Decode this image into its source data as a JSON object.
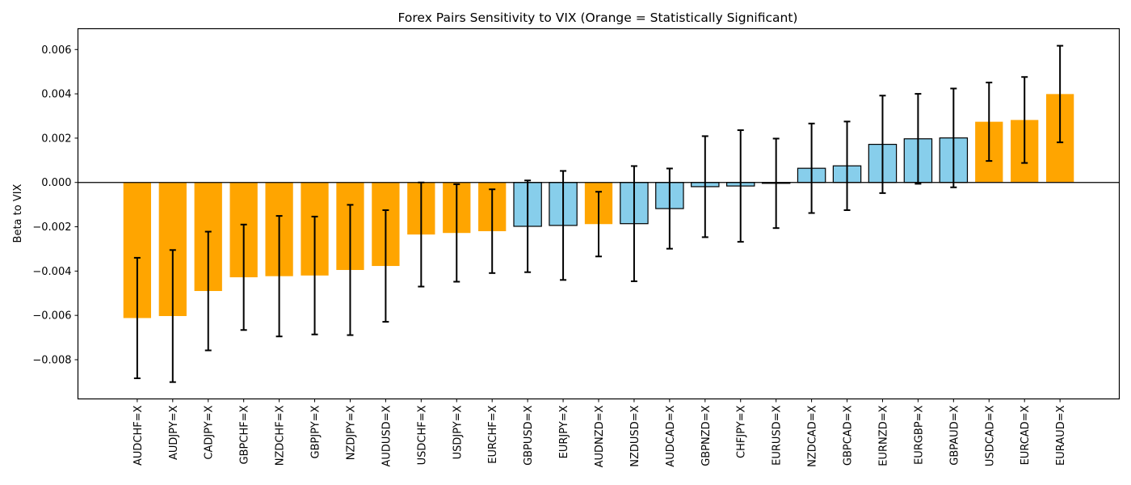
{
  "chart_data": {
    "type": "bar",
    "title": "Forex Pairs Sensitivity to VIX (Orange = Statistically Significant)",
    "xlabel": "",
    "ylabel": "Beta to VIX",
    "ylim": [
      -0.00977,
      0.00694
    ],
    "yticks": [
      -0.008,
      -0.006,
      -0.004,
      -0.002,
      0.0,
      0.002,
      0.004,
      0.006
    ],
    "ytick_labels": [
      "−0.008",
      "−0.006",
      "−0.004",
      "−0.002",
      "0.000",
      "0.002",
      "0.004",
      "0.006"
    ],
    "grid": false,
    "legend": "none",
    "zero_line": true,
    "colors": {
      "significant": "#FFA500",
      "not_significant": "#87CEEB",
      "edge_not_significant": "#000000",
      "error_bar": "#000000"
    },
    "categories": [
      "AUDCHF=X",
      "AUDJPY=X",
      "CADJPY=X",
      "GBPCHF=X",
      "NZDCHF=X",
      "GBPJPY=X",
      "NZDJPY=X",
      "AUDUSD=X",
      "USDCHF=X",
      "USDJPY=X",
      "EURCHF=X",
      "GBPUSD=X",
      "EURJPY=X",
      "AUDNZD=X",
      "NZDUSD=X",
      "AUDCAD=X",
      "GBPNZD=X",
      "CHFJPY=X",
      "EURUSD=X",
      "NZDCAD=X",
      "GBPCAD=X",
      "EURNZD=X",
      "EURGBP=X",
      "GBPAUD=X",
      "USDCAD=X",
      "EURCAD=X",
      "EURAUD=X"
    ],
    "values": [
      -0.00612,
      -0.00603,
      -0.0049,
      -0.00428,
      -0.00423,
      -0.0042,
      -0.00395,
      -0.00377,
      -0.00235,
      -0.00228,
      -0.0022,
      -0.00198,
      -0.00194,
      -0.00188,
      -0.00186,
      -0.00118,
      -0.00019,
      -0.00016,
      -4e-05,
      0.00064,
      0.00075,
      0.00172,
      0.00197,
      0.00201,
      0.00274,
      0.00282,
      0.00399
    ],
    "errors": [
      0.00272,
      0.00298,
      0.00268,
      0.00238,
      0.00272,
      0.00266,
      0.00294,
      0.00252,
      0.00235,
      0.0022,
      0.00189,
      0.00207,
      0.00246,
      0.00146,
      0.0026,
      0.00181,
      0.00228,
      0.00252,
      0.00202,
      0.00202,
      0.002,
      0.0022,
      0.00203,
      0.00223,
      0.00177,
      0.00194,
      0.00218
    ],
    "significant": [
      true,
      true,
      true,
      true,
      true,
      true,
      true,
      true,
      true,
      true,
      true,
      false,
      false,
      true,
      false,
      false,
      false,
      false,
      false,
      false,
      false,
      false,
      false,
      false,
      true,
      true,
      true
    ]
  }
}
